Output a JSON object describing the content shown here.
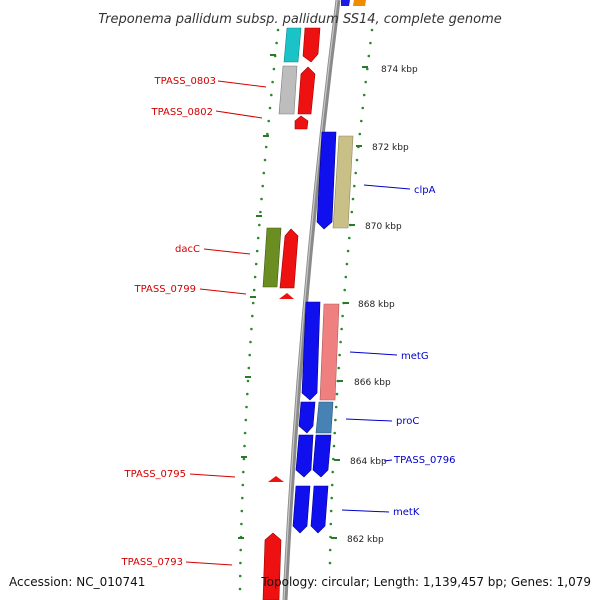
{
  "title": "Treponema pallidum subsp. pallidum SS14, complete genome",
  "accession": "Accession: NC_010741",
  "topology": "Topology: circular; Length: 1,139,457 bp; Genes: 1,079",
  "colors": {
    "backbone": "#8c8c8c",
    "forward_label": "#d40000",
    "reverse_label": "#0000cc",
    "dots": "#2a8a2a",
    "ticks": "#2a7a2a"
  },
  "scale_ticks": [
    "874 kbp",
    "872 kbp",
    "870 kbp",
    "868 kbp",
    "866 kbp",
    "864 kbp",
    "862 kbp"
  ],
  "labels": {
    "left": [
      "TPASS_0803",
      "TPASS_0802",
      "dacC",
      "TPASS_0799",
      "TPASS_0795",
      "TPASS_0793"
    ],
    "right": [
      "clpA",
      "metG",
      "proC",
      "TPASS_0796",
      "metK"
    ]
  }
}
